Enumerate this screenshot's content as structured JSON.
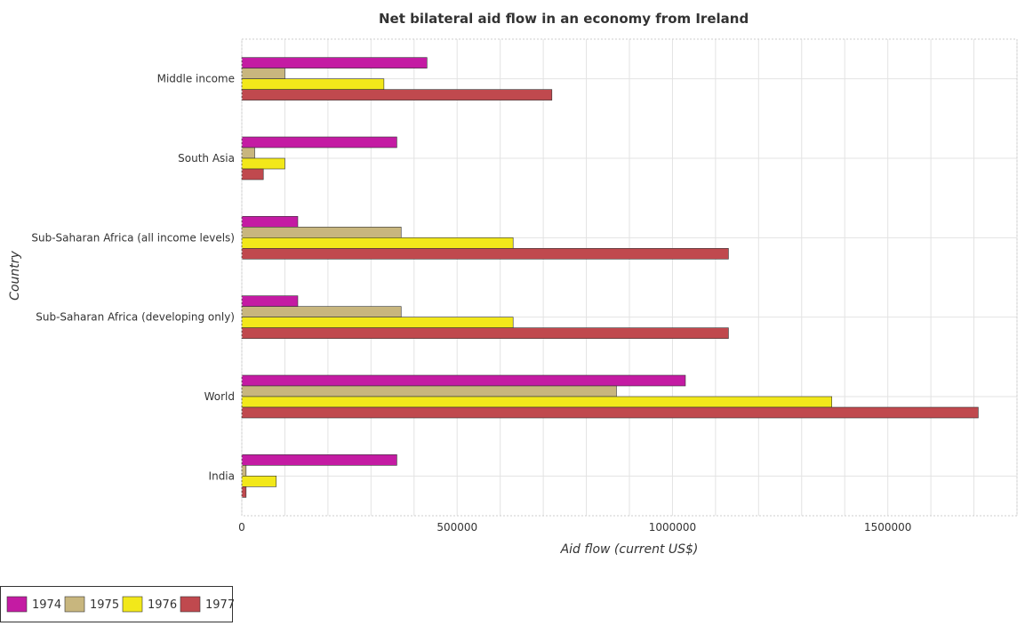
{
  "chart_data": {
    "type": "bar",
    "orientation": "horizontal",
    "title": "Net bilateral aid flow in an economy from Ireland",
    "xlabel": "Aid flow (current US$)",
    "ylabel": "Country",
    "xlim": [
      0,
      1800000
    ],
    "xticks": [
      0,
      500000,
      1000000,
      1500000
    ],
    "xtick_labels": [
      "0",
      "500000",
      "1000000",
      "1500000"
    ],
    "grid": true,
    "legend_position": "bottom-left",
    "categories": [
      "Middle income",
      "South Asia",
      "Sub-Saharan Africa (all income levels)",
      "Sub-Saharan Africa (developing only)",
      "World",
      "India"
    ],
    "series": [
      {
        "name": "1974",
        "color": "#c41ba3",
        "values": [
          430000,
          360000,
          130000,
          130000,
          1030000,
          360000
        ]
      },
      {
        "name": "1975",
        "color": "#c8b67e",
        "values": [
          100000,
          30000,
          370000,
          370000,
          870000,
          10000
        ]
      },
      {
        "name": "1976",
        "color": "#f2e81a",
        "values": [
          330000,
          100000,
          630000,
          630000,
          1370000,
          80000
        ]
      },
      {
        "name": "1977",
        "color": "#c0494e",
        "values": [
          720000,
          50000,
          1130000,
          1130000,
          1710000,
          10000
        ]
      }
    ]
  }
}
